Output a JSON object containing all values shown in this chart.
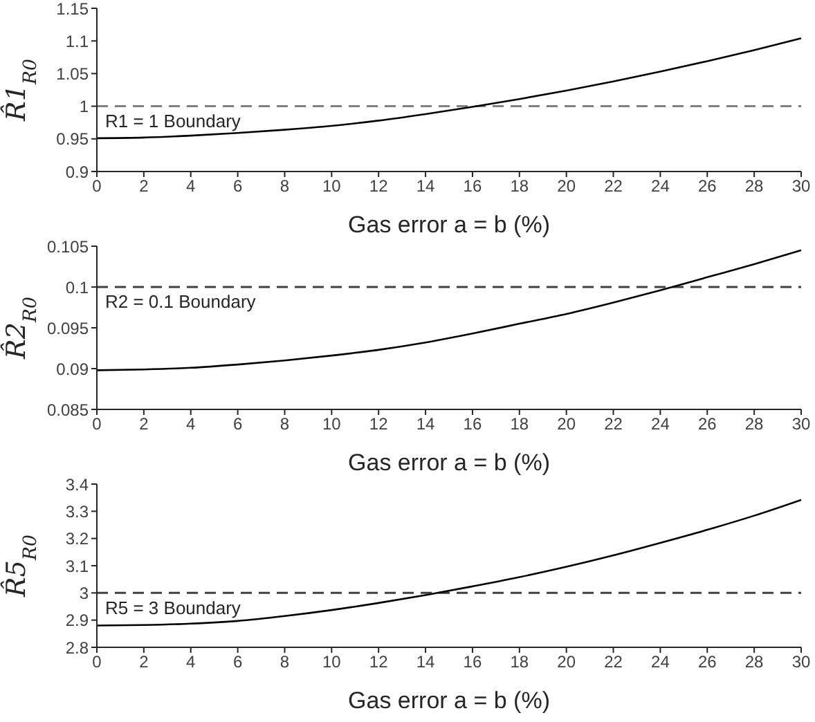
{
  "chart_data": [
    {
      "type": "line",
      "xlabel": "Gas error a = b (%)",
      "ylabel": "R̂1$_{R0}$",
      "x": [
        0,
        2,
        4,
        6,
        8,
        10,
        12,
        14,
        16,
        18,
        20,
        22,
        24,
        26,
        28,
        30
      ],
      "series": [
        {
          "color": "#000000",
          "values": [
            0.951,
            0.952,
            0.955,
            0.959,
            0.964,
            0.97,
            0.978,
            0.988,
            0.999,
            1.011,
            1.024,
            1.038,
            1.053,
            1.069,
            1.086,
            1.104
          ]
        }
      ],
      "xlim": [
        0,
        30
      ],
      "xticks": [
        0,
        2,
        4,
        6,
        8,
        10,
        12,
        14,
        16,
        18,
        20,
        22,
        24,
        26,
        28,
        30
      ],
      "ylim": [
        0.9,
        1.15
      ],
      "yticks": [
        0.9,
        0.95,
        1,
        1.05,
        1.1,
        1.15
      ],
      "ref_lines": [
        {
          "axis": "y",
          "value": 1,
          "label": "R1 = 1 Boundary",
          "color": "#808080",
          "line_style": "dashed"
        }
      ],
      "grid": false,
      "legend": false,
      "marker": "none",
      "line_style": "solid"
    },
    {
      "type": "line",
      "xlabel": "Gas error a = b (%)",
      "ylabel": "R̂2$_{R0}$",
      "x": [
        0,
        2,
        4,
        6,
        8,
        10,
        12,
        14,
        16,
        18,
        20,
        22,
        24,
        26,
        28,
        30
      ],
      "series": [
        {
          "color": "#000000",
          "values": [
            0.0898,
            0.0899,
            0.0901,
            0.0905,
            0.091,
            0.0916,
            0.0923,
            0.0932,
            0.0943,
            0.0955,
            0.0967,
            0.0981,
            0.0996,
            0.1012,
            0.1028,
            0.1045
          ]
        }
      ],
      "xlim": [
        0,
        30
      ],
      "xticks": [
        0,
        2,
        4,
        6,
        8,
        10,
        12,
        14,
        16,
        18,
        20,
        22,
        24,
        26,
        28,
        30
      ],
      "ylim": [
        0.085,
        0.105
      ],
      "yticks": [
        0.085,
        0.09,
        0.095,
        0.1,
        0.105
      ],
      "ref_lines": [
        {
          "axis": "y",
          "value": 0.1,
          "label": "R2 = 0.1 Boundary",
          "color": "#404040",
          "line_style": "dashed"
        }
      ],
      "grid": false,
      "legend": false,
      "marker": "none",
      "line_style": "solid"
    },
    {
      "type": "line",
      "xlabel": "Gas error a = b (%)",
      "ylabel": "R̂5$_{R0}$",
      "x": [
        0,
        2,
        4,
        6,
        8,
        10,
        12,
        14,
        16,
        18,
        20,
        22,
        24,
        26,
        28,
        30
      ],
      "series": [
        {
          "color": "#000000",
          "values": [
            2.88,
            2.882,
            2.887,
            2.897,
            2.915,
            2.937,
            2.963,
            2.992,
            3.024,
            3.058,
            3.096,
            3.138,
            3.184,
            3.232,
            3.284,
            3.342
          ]
        }
      ],
      "xlim": [
        0,
        30
      ],
      "xticks": [
        0,
        2,
        4,
        6,
        8,
        10,
        12,
        14,
        16,
        18,
        20,
        22,
        24,
        26,
        28,
        30
      ],
      "ylim": [
        2.8,
        3.4
      ],
      "yticks": [
        2.8,
        2.9,
        3,
        3.1,
        3.2,
        3.3,
        3.4
      ],
      "ref_lines": [
        {
          "axis": "y",
          "value": 3,
          "label": "R5 = 3 Boundary",
          "color": "#404040",
          "line_style": "dashed"
        }
      ],
      "grid": false,
      "legend": false,
      "marker": "none",
      "line_style": "solid"
    }
  ]
}
